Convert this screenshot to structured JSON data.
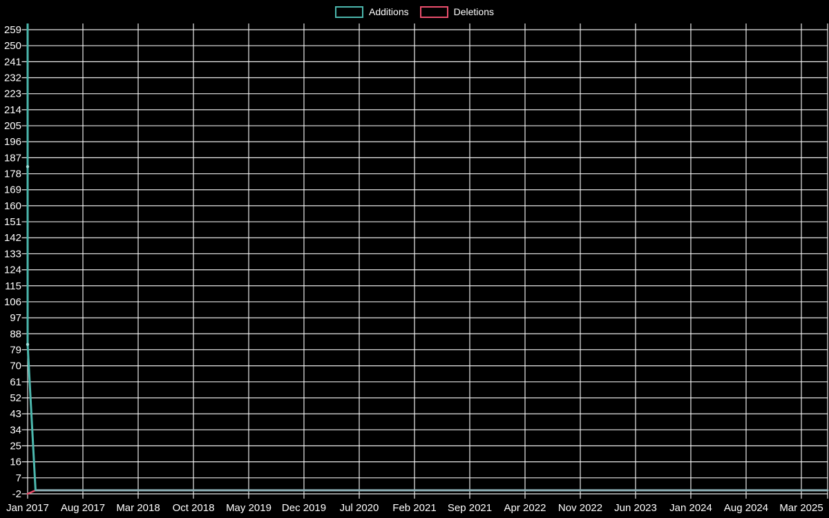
{
  "chart_data": {
    "type": "line",
    "title": "",
    "xlabel": "",
    "ylabel": "",
    "background": "#000000",
    "gridline_color": "rgba(255,255,255,0.92)",
    "text_color": "#ffffff",
    "grid": true,
    "legend_position": "top-center",
    "ylim": [
      -2,
      262.5
    ],
    "y_ticks": [
      -2,
      7,
      16,
      25,
      34,
      43,
      52,
      61,
      70,
      79,
      88,
      97,
      106,
      115,
      124,
      133,
      142,
      151,
      160,
      169,
      178,
      187,
      196,
      205,
      214,
      223,
      232,
      241,
      250,
      259
    ],
    "x_tick_labels": [
      "Jan 2017",
      "Aug 2017",
      "Mar 2018",
      "Oct 2018",
      "May 2019",
      "Dec 2019",
      "Jul 2020",
      "Feb 2021",
      "Sep 2021",
      "Apr 2022",
      "Nov 2022",
      "Jun 2023",
      "Jan 2024",
      "Aug 2024",
      "Mar 2025"
    ],
    "series": [
      {
        "name": "Additions",
        "color": "#4cb8ae",
        "muted_color": "#8fb2b8",
        "marker_color": "#9fe0da",
        "points": [
          {
            "month": "Jan 2017",
            "value": 262.5
          },
          {
            "month": "Jan 2017",
            "value": 182,
            "marker": true
          },
          {
            "month": "Jan 2017",
            "value": 82,
            "marker": true
          },
          {
            "month": "Feb 2017",
            "value": 0
          },
          {
            "month": "plot-right-edge",
            "value": 0
          }
        ]
      },
      {
        "name": "Deletions",
        "color": "#ed4f6e",
        "points": [
          {
            "month": "Jan 2017",
            "value": -2
          },
          {
            "month": "Feb 2017",
            "value": 0
          },
          {
            "month": "plot-right-edge",
            "value": 0
          }
        ]
      }
    ]
  }
}
